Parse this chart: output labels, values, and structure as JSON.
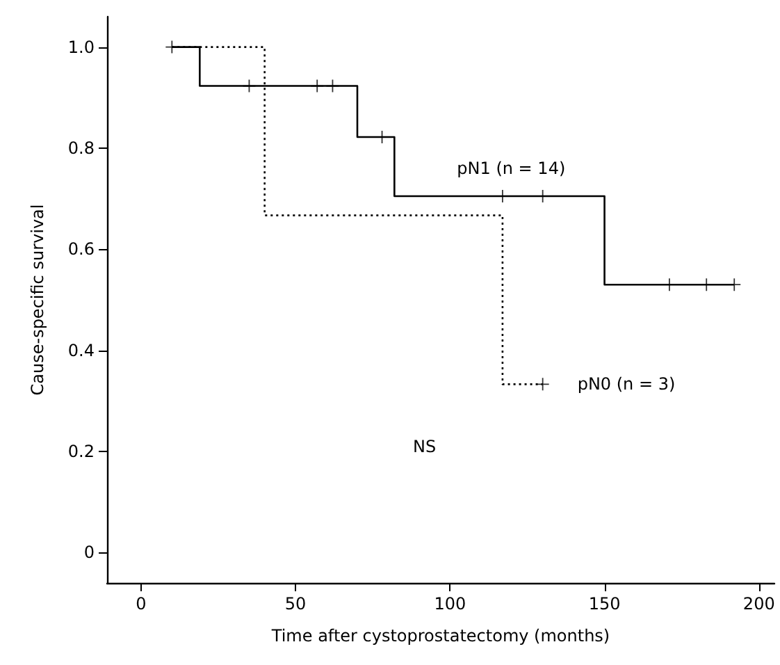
{
  "chart_data": {
    "type": "step",
    "xlabel": "Time after cystoprostatectomy (months)",
    "ylabel": "Cause-specific survival",
    "xlim": [
      -11,
      205
    ],
    "xticks": [
      0,
      50,
      100,
      150,
      200
    ],
    "ylim": [
      -0.06,
      1.06
    ],
    "yticks": [
      0,
      0.2,
      0.4,
      0.6,
      0.8,
      {
        "value": 1,
        "label": "1.0"
      }
    ],
    "series": [
      {
        "name": "pN1 (n = 14)",
        "color": "#000000",
        "line_style": "solid",
        "x": [
          10,
          19,
          70,
          82,
          150,
          192
        ],
        "values": [
          1,
          0.923,
          0.822,
          0.705,
          0.53,
          0.53
        ]
      },
      {
        "name": "pN0 (n = 3)",
        "color": "#000000",
        "line_style": "dotted",
        "x": [
          10,
          40,
          117,
          130
        ],
        "values": [
          1,
          0.667,
          0.333,
          0.333
        ]
      },
      {
        "type": "scatter",
        "color": "#000000",
        "marker": "cross",
        "x": [
          10,
          35,
          57,
          62,
          78,
          117,
          130,
          171,
          183,
          192
        ],
        "values": [
          1,
          0.923,
          0.923,
          0.923,
          0.822,
          0.705,
          0.705,
          0.53,
          0.53,
          0.53
        ]
      },
      {
        "type": "scatter",
        "color": "#000000",
        "marker": "cross",
        "x": [
          130
        ],
        "values": [
          0.333
        ]
      }
    ],
    "annotations": [
      "NS"
    ]
  }
}
